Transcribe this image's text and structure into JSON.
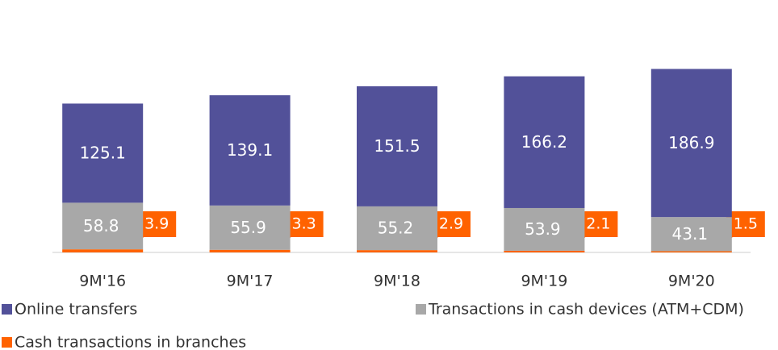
{
  "chart_data": {
    "type": "bar",
    "stacked": true,
    "categories": [
      "9M'16",
      "9M'17",
      "9M'18",
      "9M'19",
      "9M'20"
    ],
    "series": [
      {
        "name": "Cash transactions in branches",
        "color": "#ff6200",
        "values": [
          3.9,
          3.3,
          2.9,
          2.1,
          1.5
        ]
      },
      {
        "name": "Transactions in cash devices (ATM+CDM)",
        "color": "#a8a8a8",
        "values": [
          58.8,
          55.9,
          55.2,
          53.9,
          43.1
        ]
      },
      {
        "name": "Online transfers",
        "color": "#525199",
        "values": [
          125.1,
          139.1,
          151.5,
          166.2,
          186.9
        ]
      }
    ],
    "ylim": [
      0,
      232
    ]
  }
}
